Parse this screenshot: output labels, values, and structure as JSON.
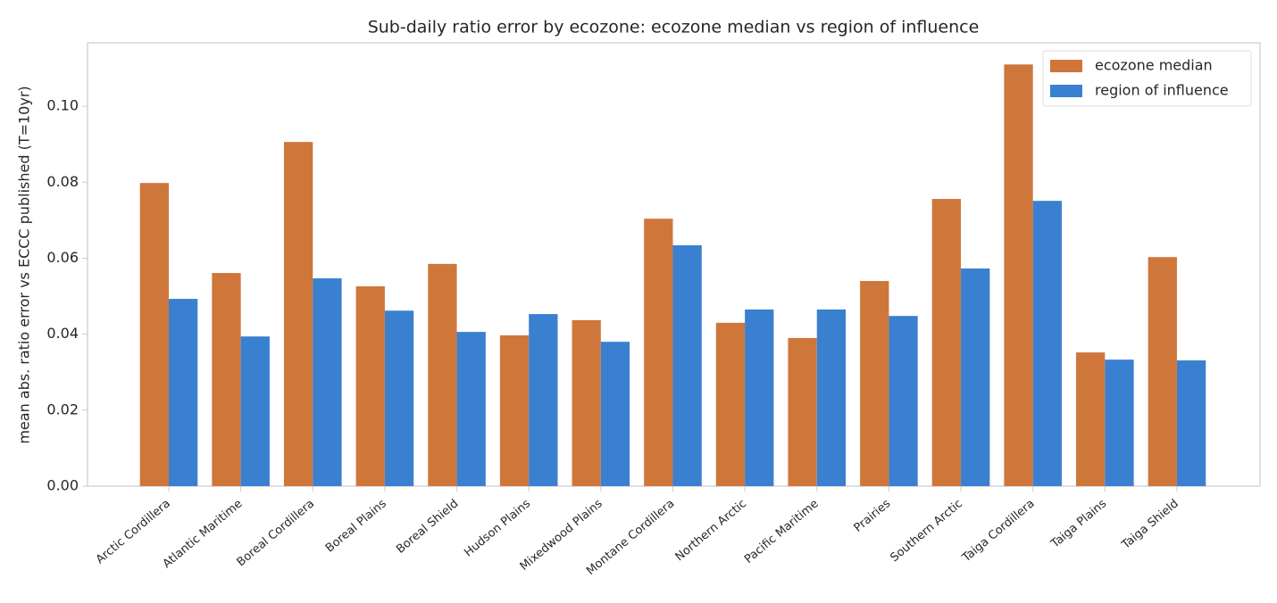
{
  "chart_data": {
    "type": "bar",
    "title": "Sub-daily ratio error by ecozone: ecozone median vs region of influence",
    "y_label": "mean abs. ratio error vs ECCC published (T=10yr)",
    "categories": [
      "Arctic Cordillera",
      "Atlantic Maritime",
      "Boreal Cordillera",
      "Boreal Plains",
      "Boreal Shield",
      "Hudson Plains",
      "Mixedwood Plains",
      "Montane Cordillera",
      "Northern Arctic",
      "Pacific Maritime",
      "Prairies",
      "Southern Arctic",
      "Taiga Cordillera",
      "Taiga Plains",
      "Taiga Shield"
    ],
    "series": [
      {
        "name": "ecozone median",
        "color": "#cf763b",
        "values": [
          0.0798,
          0.0561,
          0.0906,
          0.0526,
          0.0585,
          0.0397,
          0.0437,
          0.0704,
          0.043,
          0.039,
          0.054,
          0.0756,
          0.111,
          0.0352,
          0.0603
        ]
      },
      {
        "name": "region of influence",
        "color": "#3a80d1",
        "values": [
          0.0493,
          0.0394,
          0.0547,
          0.0462,
          0.0406,
          0.0453,
          0.038,
          0.0634,
          0.0465,
          0.0465,
          0.0448,
          0.0573,
          0.0751,
          0.0333,
          0.0331
        ]
      }
    ],
    "ylim": [
      0,
      0.1167
    ],
    "yticks": [
      {
        "value": 0,
        "label": "0.00"
      },
      {
        "value": 0.02,
        "label": "0.02"
      },
      {
        "value": 0.04,
        "label": "0.04"
      },
      {
        "value": 0.06,
        "label": "0.06"
      },
      {
        "value": 0.08,
        "label": "0.08"
      },
      {
        "value": 0.1,
        "label": "0.10"
      }
    ],
    "grid": false,
    "legend": "upper right"
  }
}
